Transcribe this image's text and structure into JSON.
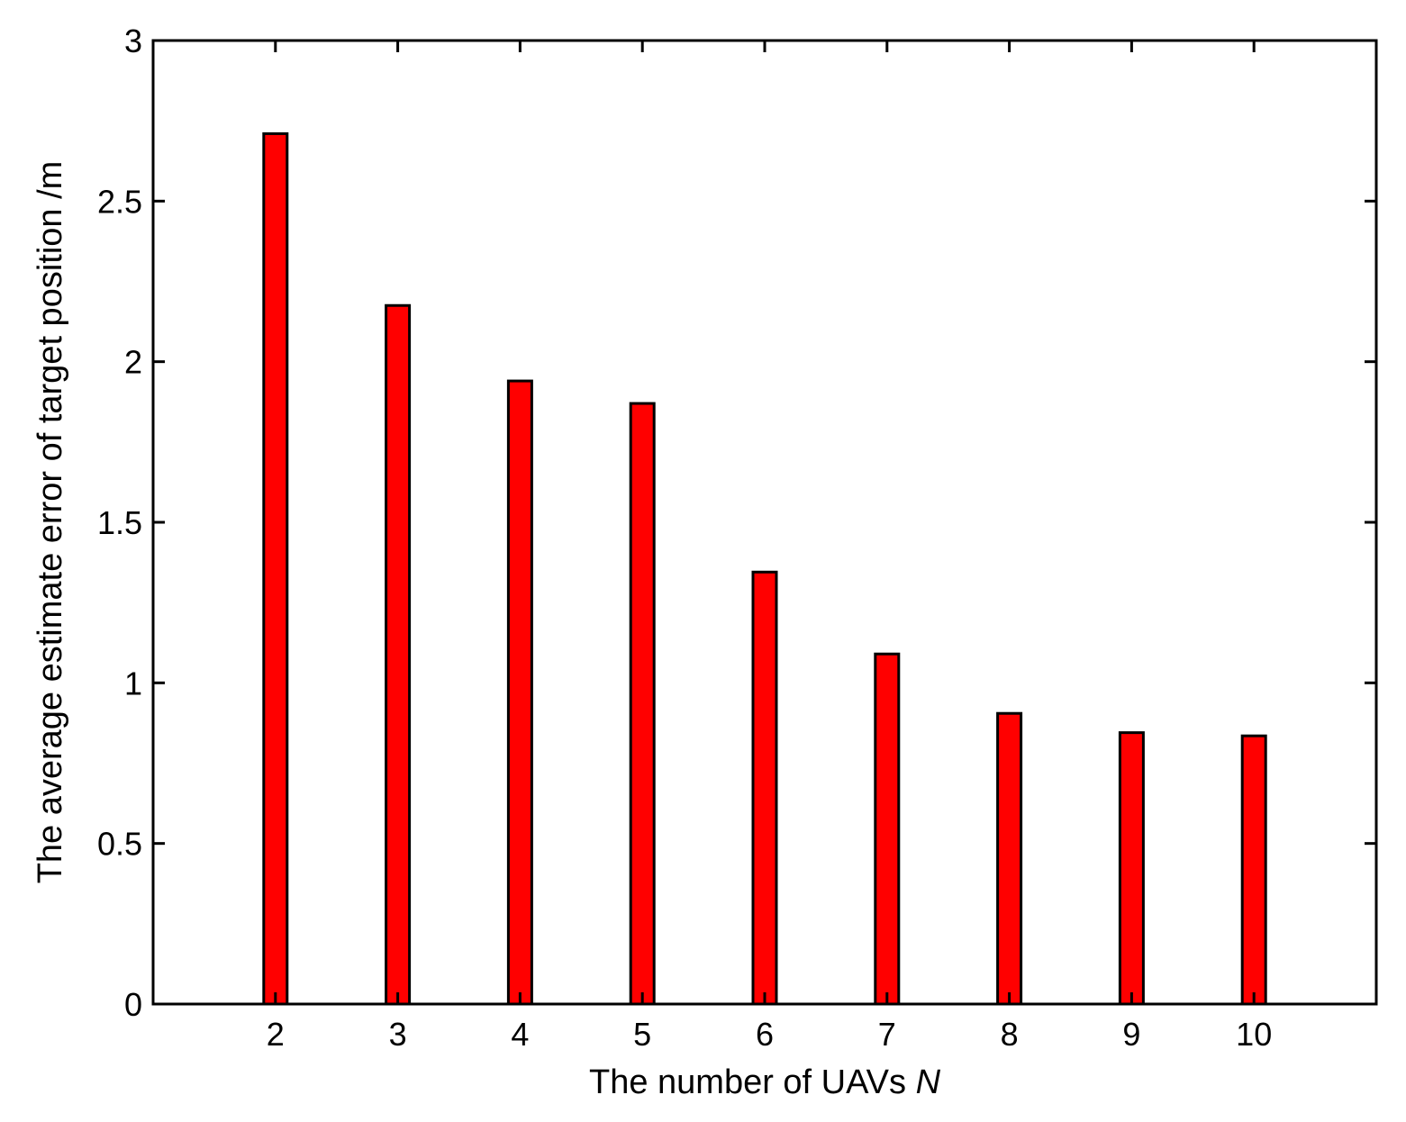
{
  "chart_data": {
    "type": "bar",
    "categories": [
      "2",
      "3",
      "4",
      "5",
      "6",
      "7",
      "8",
      "9",
      "10"
    ],
    "values": [
      2.71,
      2.175,
      1.94,
      1.87,
      1.345,
      1.09,
      0.905,
      0.845,
      0.835
    ],
    "title": "",
    "xlabel": "The number of UAVs",
    "xlabel_var": "N",
    "ylabel": "The average estimate error of target position /m",
    "ylim": [
      0,
      3
    ],
    "xlim": [
      1,
      11
    ],
    "yticks": [
      0,
      0.5,
      1,
      1.5,
      2,
      2.5,
      3
    ],
    "ytick_labels": [
      "0",
      "0.5",
      "1",
      "1.5",
      "2",
      "2.5",
      "3"
    ],
    "grid": false,
    "legend": "none",
    "colors": {
      "bar_fill": "#ff0000",
      "bar_edge": "#000000",
      "axis": "#000000",
      "background": "#ffffff"
    }
  }
}
